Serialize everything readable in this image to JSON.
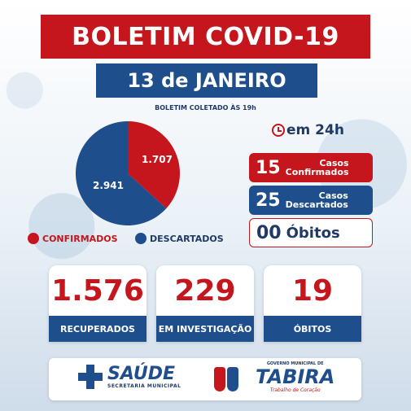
{
  "header": {
    "title": "BOLETIM COVID-19",
    "date": "13 de JANEIRO",
    "collected": "BOLETIM COLETADO ÀS 19h"
  },
  "pie": {
    "confirmed_value": "1.707",
    "discarded_value": "2.941",
    "confirmed": 1707,
    "discarded": 2941,
    "color_confirmed": "#c4161c",
    "color_discarded": "#1f4e8c"
  },
  "legend": {
    "confirmed": "CONFIRMADOS",
    "discarded": "DESCARTADOS"
  },
  "last24": {
    "heading": "em 24h",
    "confirmed_num": "15",
    "confirmed_label_1": "Casos",
    "confirmed_label_2": "Confirmados",
    "discarded_num": "25",
    "discarded_label_1": "Casos",
    "discarded_label_2": "Descartados",
    "deaths_num": "00",
    "deaths_label": "Óbitos"
  },
  "cards": [
    {
      "value": "1.576",
      "label": "RECUPERADOS"
    },
    {
      "value": "229",
      "label": "EM INVESTIGAÇÃO"
    },
    {
      "value": "19",
      "label": "ÓBITOS"
    }
  ],
  "footer": {
    "saude": "SAÚDE",
    "saude_sub": "SECRETARIA MUNICIPAL",
    "tabira_gov": "GOVERNO MUNICIPAL DE",
    "tabira_name": "TABIRA",
    "tabira_slogan": "Trabalho de Coração"
  }
}
